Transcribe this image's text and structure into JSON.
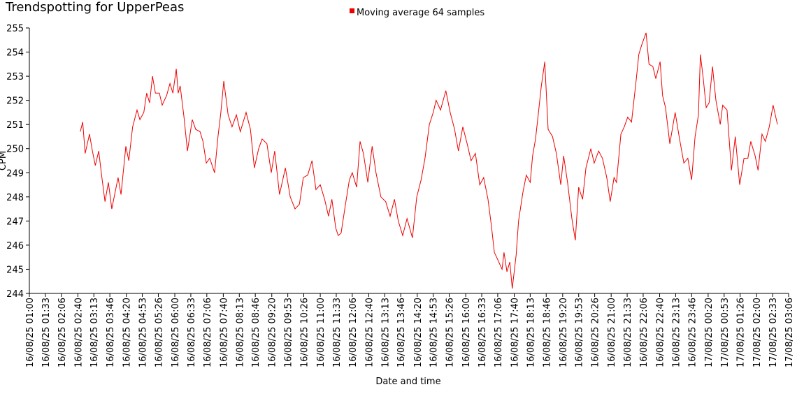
{
  "chart_data": {
    "type": "line",
    "title": "Trendspotting for UpperPeas",
    "x_label": "Date and time",
    "y_label": "CPM",
    "xlim": [
      "16/08/25 01:00",
      "17/08/25 03:06"
    ],
    "xticks": [
      "16/08/25 01:00",
      "16/08/25 01:33",
      "16/08/25 02:06",
      "16/08/25 02:40",
      "16/08/25 03:13",
      "16/08/25 03:46",
      "16/08/25 04:20",
      "16/08/25 04:53",
      "16/08/25 05:26",
      "16/08/25 06:00",
      "16/08/25 06:33",
      "16/08/25 07:06",
      "16/08/25 07:40",
      "16/08/25 08:13",
      "16/08/25 08:46",
      "16/08/25 09:20",
      "16/08/25 09:53",
      "16/08/25 10:26",
      "16/08/25 11:00",
      "16/08/25 11:33",
      "16/08/25 12:06",
      "16/08/25 12:40",
      "16/08/25 13:13",
      "16/08/25 13:46",
      "16/08/25 14:20",
      "16/08/25 14:53",
      "16/08/25 15:26",
      "16/08/25 16:00",
      "16/08/25 16:33",
      "16/08/25 17:06",
      "16/08/25 17:40",
      "16/08/25 18:13",
      "16/08/25 18:46",
      "16/08/25 19:20",
      "16/08/25 19:53",
      "16/08/25 20:26",
      "16/08/25 21:00",
      "16/08/25 21:33",
      "16/08/25 22:06",
      "16/08/25 22:40",
      "16/08/25 23:13",
      "16/08/25 23:46",
      "17/08/25 00:20",
      "17/08/25 00:53",
      "17/08/25 01:26",
      "17/08/25 02:00",
      "17/08/25 02:33",
      "17/08/25 03:06"
    ],
    "ylim": [
      244,
      255
    ],
    "yticks": [
      244,
      245,
      246,
      247,
      248,
      249,
      250,
      251,
      252,
      253,
      254,
      255
    ],
    "x": [
      "16/08/25 02:45",
      "16/08/25 02:50",
      "16/08/25 02:55",
      "16/08/25 03:04",
      "16/08/25 03:10",
      "16/08/25 03:16",
      "16/08/25 03:23",
      "16/08/25 03:29",
      "16/08/25 03:36",
      "16/08/25 03:43",
      "16/08/25 03:50",
      "16/08/25 03:57",
      "16/08/25 04:03",
      "16/08/25 04:09",
      "16/08/25 04:19",
      "16/08/25 04:25",
      "16/08/25 04:33",
      "16/08/25 04:42",
      "16/08/25 04:48",
      "16/08/25 04:56",
      "16/08/25 05:02",
      "16/08/25 05:08",
      "16/08/25 05:14",
      "16/08/25 05:20",
      "16/08/25 05:28",
      "16/08/25 05:34",
      "16/08/25 05:43",
      "16/08/25 05:50",
      "16/08/25 05:56",
      "16/08/25 06:03",
      "16/08/25 06:07",
      "16/08/25 06:11",
      "16/08/25 06:19",
      "16/08/25 06:26",
      "16/08/25 06:36",
      "16/08/25 06:43",
      "16/08/25 06:52",
      "16/08/25 06:58",
      "16/08/25 07:05",
      "16/08/25 07:12",
      "16/08/25 07:22",
      "16/08/25 07:29",
      "16/08/25 07:35",
      "16/08/25 07:41",
      "16/08/25 07:50",
      "16/08/25 07:58",
      "16/08/25 08:07",
      "16/08/25 08:15",
      "16/08/25 08:27",
      "16/08/25 08:36",
      "16/08/25 08:44",
      "16/08/25 08:53",
      "16/08/25 09:00",
      "16/08/25 09:10",
      "16/08/25 09:19",
      "16/08/25 09:26",
      "16/08/25 09:36",
      "16/08/25 09:48",
      "16/08/25 09:58",
      "16/08/25 10:08",
      "16/08/25 10:17",
      "16/08/25 10:25",
      "16/08/25 10:34",
      "16/08/25 10:43",
      "16/08/25 10:51",
      "16/08/25 11:00",
      "16/08/25 11:09",
      "16/08/25 11:17",
      "16/08/25 11:24",
      "16/08/25 11:32",
      "16/08/25 11:37",
      "16/08/25 11:43",
      "16/08/25 11:52",
      "16/08/25 12:00",
      "16/08/25 12:06",
      "16/08/25 12:15",
      "16/08/25 12:22",
      "16/08/25 12:29",
      "16/08/25 12:38",
      "16/08/25 12:47",
      "16/08/25 12:55",
      "16/08/25 13:05",
      "16/08/25 13:15",
      "16/08/25 13:24",
      "16/08/25 13:33",
      "16/08/25 13:41",
      "16/08/25 13:50",
      "16/08/25 13:59",
      "16/08/25 14:10",
      "16/08/25 14:19",
      "16/08/25 14:28",
      "16/08/25 14:36",
      "16/08/25 14:45",
      "16/08/25 14:53",
      "16/08/25 14:59",
      "16/08/25 15:08",
      "16/08/25 15:19",
      "16/08/25 15:28",
      "16/08/25 15:37",
      "16/08/25 15:45",
      "16/08/25 15:54",
      "16/08/25 16:03",
      "16/08/25 16:11",
      "16/08/25 16:20",
      "16/08/25 16:29",
      "16/08/25 16:37",
      "16/08/25 16:46",
      "16/08/25 16:53",
      "16/08/25 16:59",
      "16/08/25 17:06",
      "16/08/25 17:15",
      "16/08/25 17:19",
      "16/08/25 17:25",
      "16/08/25 17:31",
      "16/08/25 17:36",
      "16/08/25 17:44",
      "16/08/25 17:49",
      "16/08/25 17:58",
      "16/08/25 18:05",
      "16/08/25 18:13",
      "16/08/25 18:18",
      "16/08/25 18:24",
      "16/08/25 18:30",
      "16/08/25 18:36",
      "16/08/25 18:43",
      "16/08/25 18:50",
      "16/08/25 18:59",
      "16/08/25 19:07",
      "16/08/25 19:16",
      "16/08/25 19:22",
      "16/08/25 19:30",
      "16/08/25 19:39",
      "16/08/25 19:46",
      "16/08/25 19:53",
      "16/08/25 20:01",
      "16/08/25 20:08",
      "16/08/25 20:18",
      "16/08/25 20:25",
      "16/08/25 20:34",
      "16/08/25 20:42",
      "16/08/25 20:51",
      "16/08/25 20:58",
      "16/08/25 21:06",
      "16/08/25 21:11",
      "16/08/25 21:20",
      "16/08/25 21:27",
      "16/08/25 21:34",
      "16/08/25 21:42",
      "16/08/25 21:52",
      "16/08/25 21:57",
      "16/08/25 22:03",
      "16/08/25 22:12",
      "16/08/25 22:18",
      "16/08/25 22:26",
      "16/08/25 22:32",
      "16/08/25 22:41",
      "16/08/25 22:46",
      "16/08/25 22:52",
      "16/08/25 23:01",
      "16/08/25 23:12",
      "16/08/25 23:21",
      "16/08/25 23:30",
      "16/08/25 23:38",
      "16/08/25 23:46",
      "16/08/25 23:53",
      "17/08/25 00:00",
      "17/08/25 00:04",
      "17/08/25 00:10",
      "17/08/25 00:16",
      "17/08/25 00:22",
      "17/08/25 00:29",
      "17/08/25 00:36",
      "17/08/25 00:45",
      "17/08/25 00:50",
      "17/08/25 00:59",
      "17/08/25 01:08",
      "17/08/25 01:16",
      "17/08/25 01:25",
      "17/08/25 01:34",
      "17/08/25 01:42",
      "17/08/25 01:48",
      "17/08/25 01:57",
      "17/08/25 02:03",
      "17/08/25 02:11",
      "17/08/25 02:18",
      "17/08/25 02:26",
      "17/08/25 02:34",
      "17/08/25 02:43"
    ],
    "series": [
      {
        "name": "Moving average 64 samples",
        "color": "#ee0000",
        "values": [
          250.7,
          251.1,
          249.8,
          250.6,
          249.9,
          249.3,
          249.9,
          248.9,
          247.8,
          248.6,
          247.5,
          248.2,
          248.8,
          248.1,
          250.1,
          249.5,
          250.9,
          251.6,
          251.2,
          251.5,
          252.3,
          251.9,
          253.0,
          252.3,
          252.3,
          251.8,
          252.2,
          252.7,
          252.3,
          253.3,
          252.3,
          252.6,
          251.3,
          249.9,
          251.2,
          250.8,
          250.7,
          250.3,
          249.4,
          249.6,
          249.0,
          250.5,
          251.5,
          252.8,
          251.4,
          250.9,
          251.4,
          250.7,
          251.5,
          250.8,
          249.2,
          250.0,
          250.4,
          250.2,
          249.0,
          249.9,
          248.1,
          249.2,
          248.0,
          247.5,
          247.7,
          248.8,
          248.9,
          249.5,
          248.3,
          248.5,
          247.9,
          247.2,
          247.9,
          246.7,
          246.4,
          246.5,
          247.7,
          248.7,
          249.0,
          248.4,
          250.3,
          249.8,
          248.6,
          250.1,
          249.0,
          248.0,
          247.8,
          247.2,
          247.9,
          247.0,
          246.4,
          247.1,
          246.3,
          248.0,
          248.7,
          249.6,
          251.0,
          251.5,
          252.0,
          251.6,
          252.4,
          251.5,
          250.8,
          249.9,
          250.9,
          250.2,
          249.5,
          249.8,
          248.5,
          248.8,
          247.9,
          246.8,
          245.7,
          245.4,
          245.0,
          245.7,
          244.9,
          245.3,
          244.2,
          245.6,
          247.0,
          248.2,
          248.9,
          248.6,
          249.7,
          250.4,
          251.5,
          252.6,
          253.6,
          250.8,
          250.5,
          249.8,
          248.5,
          249.7,
          248.6,
          247.1,
          246.2,
          248.4,
          247.9,
          249.2,
          250.0,
          249.4,
          249.9,
          249.6,
          248.8,
          247.8,
          248.8,
          248.6,
          250.6,
          250.9,
          251.3,
          251.1,
          252.9,
          253.9,
          254.3,
          254.8,
          253.5,
          253.4,
          252.9,
          253.6,
          252.2,
          251.7,
          250.2,
          251.5,
          250.4,
          249.4,
          249.6,
          248.7,
          250.5,
          251.4,
          253.9,
          252.9,
          251.7,
          251.9,
          253.4,
          252.0,
          251.0,
          251.8,
          251.6,
          249.1,
          250.5,
          248.5,
          249.6,
          249.6,
          250.3,
          249.7,
          249.1,
          250.6,
          250.3,
          250.9,
          251.8,
          251.0
        ]
      }
    ]
  }
}
